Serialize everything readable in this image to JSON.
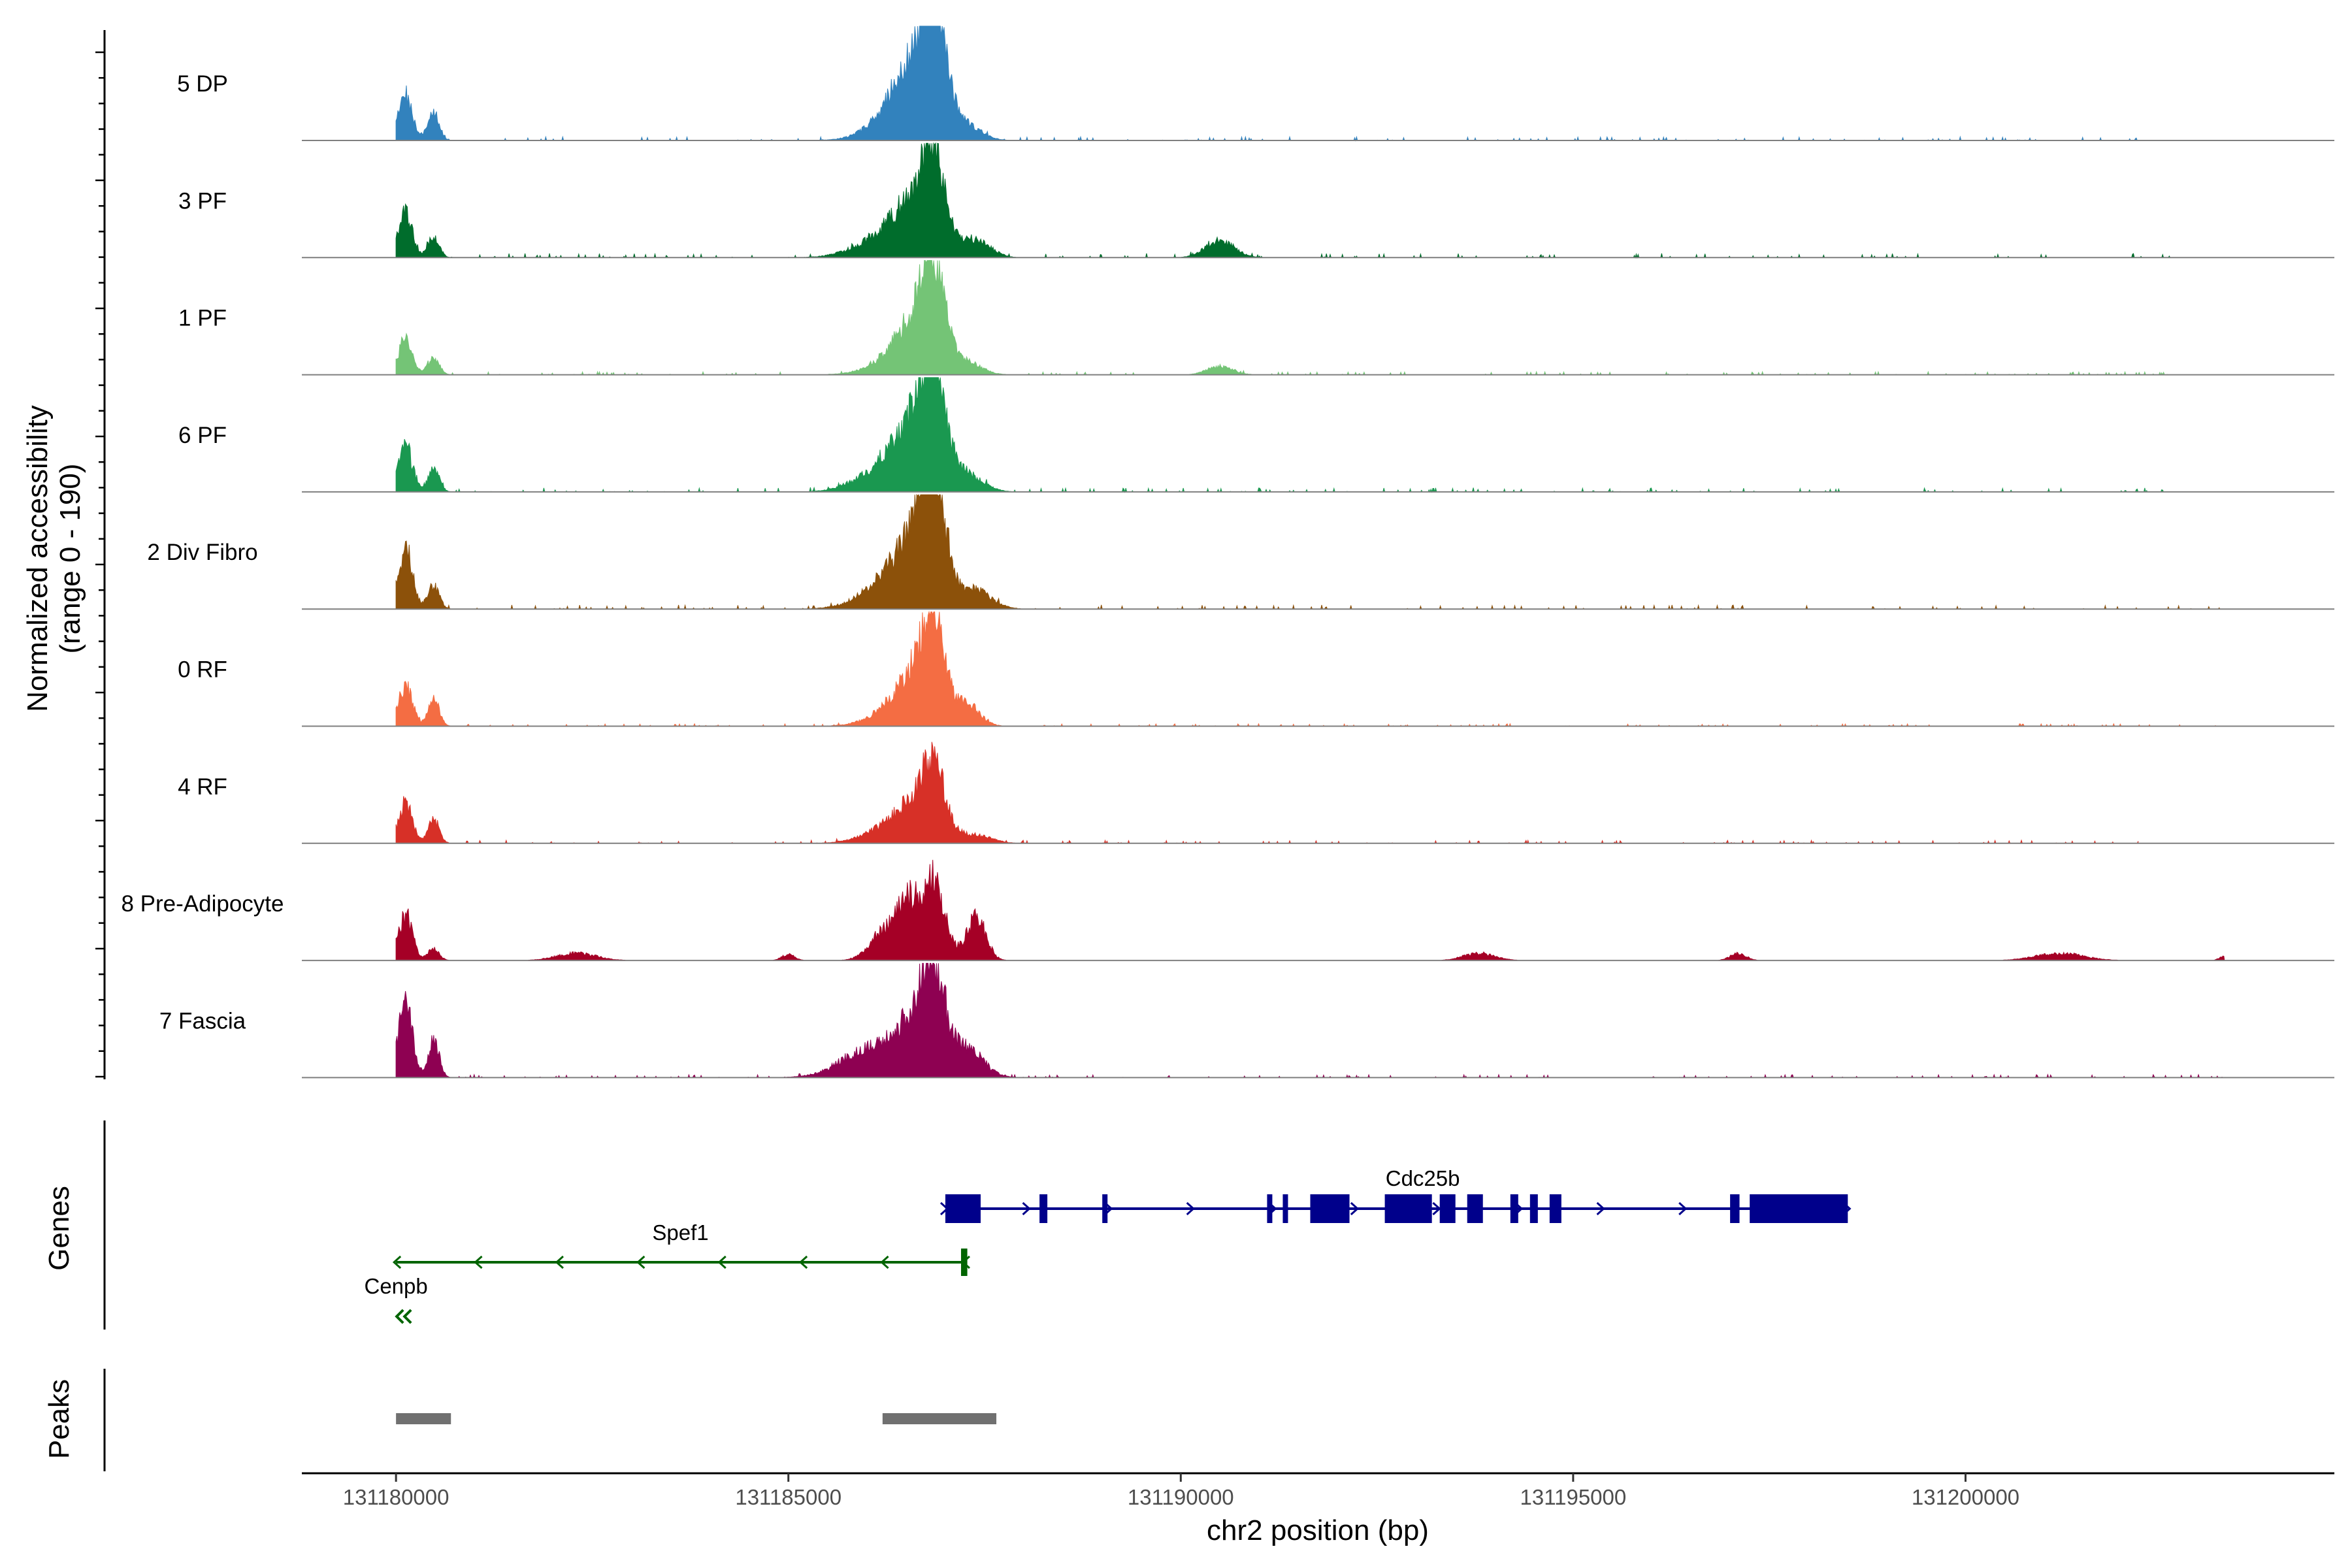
{
  "chart_data": {
    "type": "area",
    "title": "",
    "ylabel_line1": "Normalized accessibility",
    "ylabel_line2": "(range 0 - 190)",
    "y_range": [
      0,
      190
    ],
    "xlabel": "chr2 position (bp)",
    "x_range": [
      131178800,
      131204700
    ],
    "x_ticks": [
      {
        "value": 131180000,
        "label": "131180000"
      },
      {
        "value": 131185000,
        "label": "131185000"
      },
      {
        "value": 131190000,
        "label": "131190000"
      },
      {
        "value": 131195000,
        "label": "131195000"
      },
      {
        "value": 131200000,
        "label": "131200000"
      }
    ],
    "genes_label": "Genes",
    "peaks_label": "Peaks",
    "series": [
      {
        "name": "5 DP",
        "color": "#3282BD",
        "mainPeak": 165,
        "p1": 75,
        "p2": 45,
        "noise": 6,
        "endPos": 131202300,
        "extra": [
          [
            131186500,
            60,
            350
          ],
          [
            131187300,
            18,
            180
          ]
        ]
      },
      {
        "name": "3 PF",
        "color": "#006D2C",
        "mainPeak": 125,
        "p1": 72,
        "p2": 35,
        "noise": 7,
        "endPos": 131202700,
        "extra": [
          [
            131186400,
            45,
            350
          ],
          [
            131187400,
            28,
            180
          ],
          [
            131190500,
            28,
            180
          ],
          [
            131185900,
            6,
            300
          ]
        ]
      },
      {
        "name": "1 PF",
        "color": "#74C476",
        "mainPeak": 125,
        "p1": 58,
        "p2": 28,
        "noise": 5,
        "endPos": 131202600,
        "extra": [
          [
            131186500,
            35,
            350
          ],
          [
            131187300,
            15,
            180
          ],
          [
            131190500,
            14,
            160
          ]
        ]
      },
      {
        "name": "6 PF",
        "color": "#1A9850",
        "mainPeak": 150,
        "p1": 75,
        "p2": 38,
        "noise": 7,
        "endPos": 131202800,
        "extra": [
          [
            131186500,
            55,
            380
          ],
          [
            131187300,
            20,
            200
          ],
          [
            131185900,
            8,
            250
          ],
          [
            131203200,
            8,
            60
          ]
        ]
      },
      {
        "name": "2 Div Fibro",
        "color": "#8C510A",
        "mainPeak": 160,
        "p1": 100,
        "p2": 40,
        "noise": 7,
        "endPos": 131203300,
        "extra": [
          [
            131186400,
            55,
            380
          ],
          [
            131187400,
            28,
            200
          ]
        ]
      },
      {
        "name": "0 RF",
        "color": "#F46D43",
        "mainPeak": 120,
        "p1": 65,
        "p2": 45,
        "noise": 4,
        "endPos": 131203200,
        "extra": [
          [
            131186500,
            35,
            350
          ],
          [
            131187300,
            30,
            150
          ]
        ]
      },
      {
        "name": "4 RF",
        "color": "#D73027",
        "mainPeak": 90,
        "p1": 65,
        "p2": 40,
        "noise": 5,
        "endPos": 131202200,
        "extra": [
          [
            131186400,
            30,
            350
          ],
          [
            131187400,
            12,
            200
          ]
        ]
      },
      {
        "name": "8 Pre-Adipocyte",
        "color": "#A50026",
        "mainPeak": 95,
        "p1": 75,
        "p2": 20,
        "noise": 0,
        "endPos": 131203300,
        "extra": [
          [
            131186200,
            40,
            180
          ],
          [
            131186500,
            55,
            120
          ],
          [
            131187400,
            70,
            120
          ],
          [
            131182300,
            12,
            250
          ],
          [
            131185000,
            10,
            80
          ],
          [
            131193800,
            12,
            200
          ],
          [
            131197100,
            12,
            100
          ],
          [
            131201200,
            12,
            300
          ],
          [
            131203300,
            8,
            60
          ]
        ]
      },
      {
        "name": "7 Fascia",
        "color": "#8E0152",
        "mainPeak": 125,
        "p1": 120,
        "p2": 60,
        "noise": 5,
        "endPos": 131203300,
        "extra": [
          [
            131186300,
            50,
            450
          ],
          [
            131187300,
            40,
            200
          ],
          [
            131185800,
            10,
            250
          ]
        ]
      }
    ],
    "genes": [
      {
        "name": "Cdc25b",
        "strand": "+",
        "start": 131187000,
        "end": 131198500,
        "color": "#00008B",
        "exons": [
          [
            131187000,
            131187450
          ],
          [
            131188200,
            131188300
          ],
          [
            131189000,
            131189060
          ],
          [
            131191100,
            131191150
          ],
          [
            131191300,
            131191350
          ],
          [
            131191650,
            131192150
          ],
          [
            131192600,
            131193200
          ],
          [
            131193300,
            131193500
          ],
          [
            131193650,
            131193850
          ],
          [
            131194200,
            131194300
          ],
          [
            131194450,
            131194550
          ],
          [
            131194700,
            131194850
          ],
          [
            131197000,
            131197120
          ],
          [
            131197250,
            131198500
          ]
        ]
      },
      {
        "name": "Spef1",
        "strand": "-",
        "start": 131180000,
        "end": 131187250,
        "color": "#006400",
        "exons": [
          [
            131187200,
            131187280
          ]
        ]
      },
      {
        "name": "Cenpb",
        "strand": "-",
        "start": 131180000,
        "end": 131180200,
        "color": "#006400",
        "exons": []
      }
    ],
    "peaks": [
      {
        "start": 131180000,
        "end": 131180700
      },
      {
        "start": 131186200,
        "end": 131187650
      }
    ]
  }
}
